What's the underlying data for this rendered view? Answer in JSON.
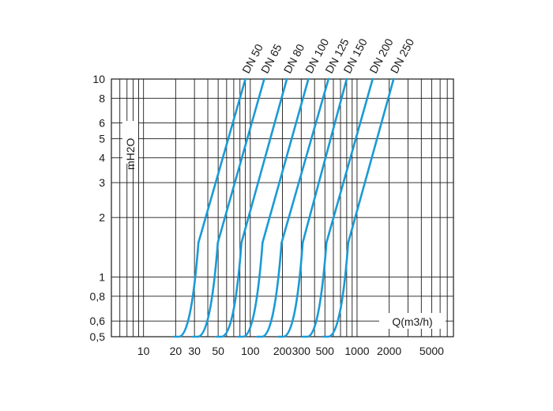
{
  "chart_data": {
    "type": "line",
    "title": "",
    "xlabel": "Q(m3/h)",
    "ylabel": "mH2O",
    "x_scale": "log",
    "y_scale": "log",
    "xlim": [
      5,
      8000
    ],
    "ylim": [
      0.5,
      10
    ],
    "x_ticks": [
      10,
      20,
      30,
      50,
      100,
      200,
      300,
      500,
      1000,
      2000,
      5000
    ],
    "x_tick_labels": [
      "10",
      "20",
      "30",
      "50",
      "100",
      "200",
      "300",
      "500",
      "1000",
      "2000",
      "5000"
    ],
    "y_ticks": [
      0.5,
      0.6,
      0.8,
      1,
      2,
      3,
      4,
      5,
      6,
      8,
      10
    ],
    "y_tick_labels": [
      "0,5",
      "0,6",
      "0,8",
      "1",
      "2",
      "3",
      "4",
      "5",
      "6",
      "8",
      "10"
    ],
    "grid": true,
    "line_color": "#1a9ad6",
    "series": [
      {
        "name": "DN 50",
        "x": [
          20,
          31.6
        ],
        "y": [
          0.5,
          1.4
        ],
        "x2": [
          31.6,
          90
        ],
        "y2": [
          1.4,
          10
        ]
      },
      {
        "name": "DN 65",
        "x": [
          30,
          48
        ],
        "y": [
          0.5,
          1.4
        ],
        "x2": [
          48,
          135
        ],
        "y2": [
          1.4,
          10
        ]
      },
      {
        "name": "DN 80",
        "x": [
          50,
          80
        ],
        "y": [
          0.5,
          1.4
        ],
        "x2": [
          80,
          220
        ],
        "y2": [
          1.4,
          10
        ]
      },
      {
        "name": "DN 100",
        "x": [
          80,
          126
        ],
        "y": [
          0.5,
          1.4
        ],
        "x2": [
          126,
          350
        ],
        "y2": [
          1.4,
          10
        ]
      },
      {
        "name": "DN 125",
        "x": [
          120,
          190
        ],
        "y": [
          0.5,
          1.4
        ],
        "x2": [
          190,
          540
        ],
        "y2": [
          1.4,
          10
        ]
      },
      {
        "name": "DN 150",
        "x": [
          190,
          300
        ],
        "y": [
          0.5,
          1.4
        ],
        "x2": [
          300,
          800
        ],
        "y2": [
          1.4,
          10
        ]
      },
      {
        "name": "DN 200",
        "x": [
          320,
          500
        ],
        "y": [
          0.5,
          1.4
        ],
        "x2": [
          500,
          1400
        ],
        "y2": [
          1.4,
          10
        ]
      },
      {
        "name": "DN 250",
        "x": [
          500,
          800
        ],
        "y": [
          0.5,
          1.4
        ],
        "x2": [
          800,
          2200
        ],
        "y2": [
          1.4,
          10
        ]
      }
    ]
  }
}
